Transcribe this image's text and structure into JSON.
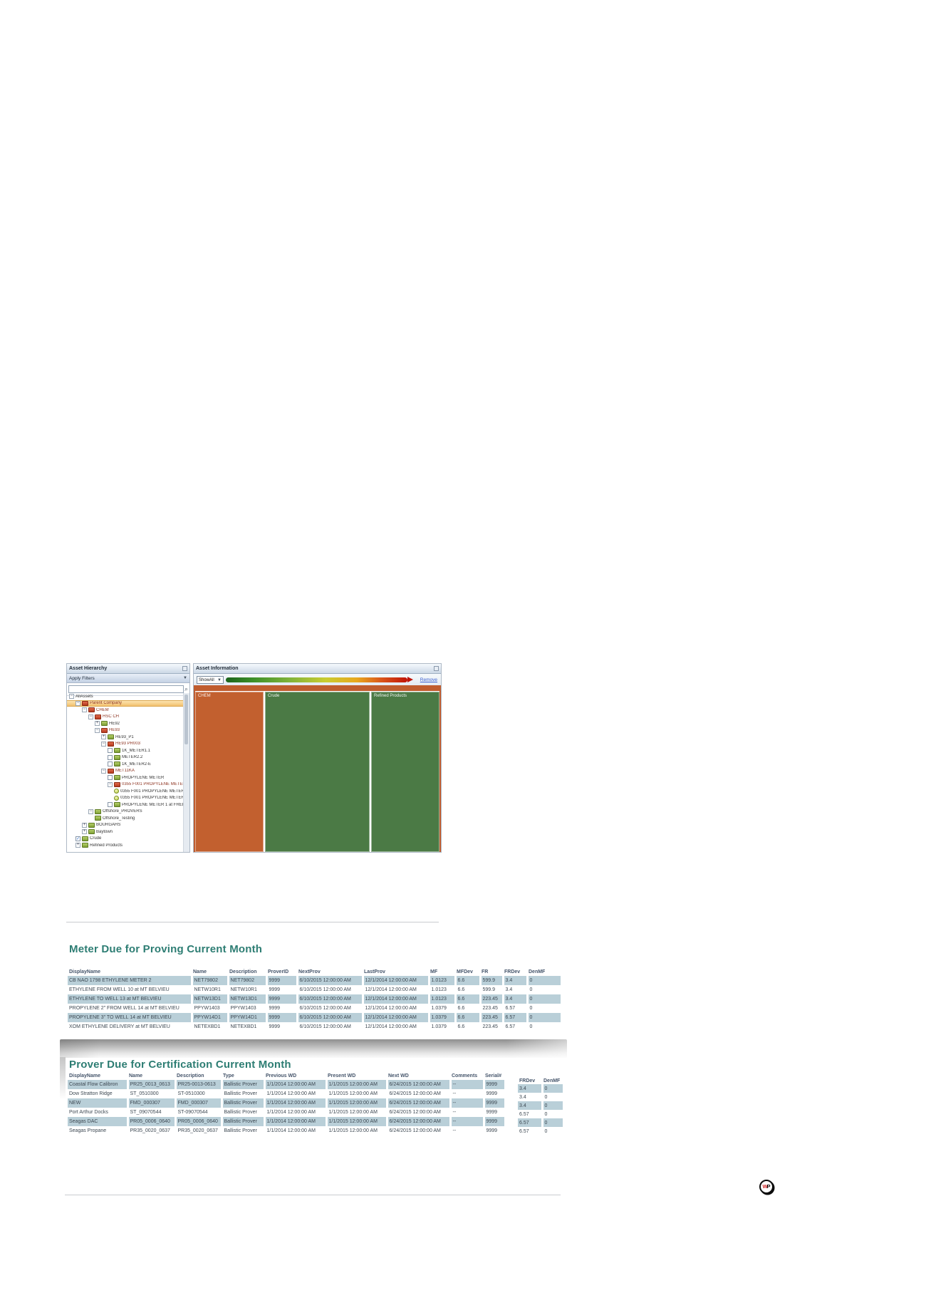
{
  "app": {
    "tree_panel": {
      "title": "Asset Hierarchy",
      "filter_label": "Apply Filters",
      "search_value": "",
      "items": [
        {
          "label": "AllAssets",
          "depth": 0,
          "icon": "none",
          "exp": "minus",
          "checkbox": "none",
          "hl": false
        },
        {
          "label": "Parent Company",
          "depth": 1,
          "icon": "red-folder",
          "exp": "minus",
          "checkbox": "none",
          "hl": true
        },
        {
          "label": "CHEM",
          "depth": 2,
          "icon": "red-folder",
          "exp": "minus",
          "checkbox": "none",
          "hl": false
        },
        {
          "label": "HSC CH",
          "depth": 3,
          "icon": "red-folder",
          "exp": "minus",
          "checkbox": "none",
          "hl": false
        },
        {
          "label": "HE92",
          "depth": 4,
          "icon": "green-folder",
          "exp": "plus",
          "checkbox": "none",
          "hl": false
        },
        {
          "label": "HE93",
          "depth": 4,
          "icon": "red-folder",
          "exp": "minus",
          "checkbox": "none",
          "hl": false
        },
        {
          "label": "HE93_P1",
          "depth": 5,
          "icon": "green-folder",
          "exp": "plus",
          "checkbox": "none",
          "hl": false
        },
        {
          "label": "HE93 PR003",
          "depth": 5,
          "icon": "red-folder",
          "exp": "minus",
          "checkbox": "none",
          "hl": false
        },
        {
          "label": "1K_METER1.1",
          "depth": 6,
          "icon": "green-folder",
          "exp": "none",
          "checkbox": "empty",
          "hl": false
        },
        {
          "label": "METER2.2",
          "depth": 6,
          "icon": "green-folder",
          "exp": "none",
          "checkbox": "empty",
          "hl": false
        },
        {
          "label": "1K_METER2-E",
          "depth": 6,
          "icon": "green-folder",
          "exp": "none",
          "checkbox": "empty",
          "hl": false
        },
        {
          "label": "MET11KA",
          "depth": 5,
          "icon": "red-folder",
          "exp": "minus",
          "checkbox": "none",
          "hl": false
        },
        {
          "label": "PROPYLENE METER",
          "depth": 6,
          "icon": "green-folder",
          "exp": "none",
          "checkbox": "empty",
          "hl": false
        },
        {
          "label": "0355 F001 PROPYLENE METER",
          "depth": 6,
          "icon": "red-folder",
          "exp": "minus",
          "checkbox": "none",
          "hl": false
        },
        {
          "label": "0355 F001 PROPYLENE METER 1",
          "depth": 7,
          "icon": "bulb",
          "exp": "none",
          "checkbox": "none",
          "hl": false
        },
        {
          "label": "0355 F001 PROPYLENE METER 2",
          "depth": 7,
          "icon": "bulb",
          "exp": "none",
          "checkbox": "none",
          "hl": false
        },
        {
          "label": "PROPYLENE METER 1 at FREEPORT",
          "depth": 6,
          "icon": "green-folder",
          "exp": "none",
          "checkbox": "empty",
          "hl": false
        },
        {
          "label": "Offshore_PROVERS",
          "depth": 3,
          "icon": "green-folder",
          "exp": "minus",
          "checkbox": "none",
          "hl": false
        },
        {
          "label": "Offshore_Testing",
          "depth": 4,
          "icon": "green-folder",
          "exp": "none",
          "checkbox": "none",
          "hl": false
        },
        {
          "label": "BOURGAHS",
          "depth": 2,
          "icon": "green-folder",
          "exp": "plus",
          "checkbox": "none",
          "hl": false
        },
        {
          "label": "Baytown",
          "depth": 2,
          "icon": "green-folder",
          "exp": "plus",
          "checkbox": "none",
          "hl": false
        },
        {
          "label": "Crude",
          "depth": 1,
          "icon": "green-folder",
          "exp": "none",
          "checkbox": "checked",
          "hl": false
        },
        {
          "label": "Refined Products",
          "depth": 1,
          "icon": "green-folder",
          "exp": "plus",
          "checkbox": "none",
          "hl": false
        }
      ]
    },
    "info_panel": {
      "title": "Asset Information",
      "dropdown_value": "ShowAll",
      "dropdown_caret": "▼",
      "remove_label": "Remove",
      "tiles": [
        {
          "label": "CHEM",
          "color": "#c2602f"
        },
        {
          "label": "Crude",
          "color": "#4b7a45"
        },
        {
          "label": "Refined Products",
          "color": "#4b7a45"
        }
      ]
    },
    "filter_caret": "▼",
    "search_icon": "⌕"
  },
  "meter_table": {
    "title": "Meter Due for Proving Current Month",
    "columns": [
      "DisplayName",
      "Name",
      "Description",
      "ProverID",
      "NextProv",
      "LastProv",
      "MF",
      "MFDev",
      "FR",
      "FRDev",
      "DenMF"
    ],
    "rows": [
      {
        "hl": true,
        "cells": [
          "CB NAO 1798 ETHYLENE METER 2",
          "NET79802",
          "NET79802",
          "9999",
          "6/10/2015 12:00:00 AM",
          "12/1/2014 12:00:00 AM",
          "1.0123",
          "6.6",
          "599.9",
          "3.4",
          "0"
        ]
      },
      {
        "hl": false,
        "cells": [
          "ETHYLENE FROM WELL 10 at MT BELVIEU",
          "NETW10R1",
          "NETW10R1",
          "9999",
          "6/10/2015 12:00:00 AM",
          "12/1/2014 12:00:00 AM",
          "1.0123",
          "6.6",
          "599.9",
          "3.4",
          "0"
        ]
      },
      {
        "hl": true,
        "cells": [
          "ETHYLENE TO WELL 13 at MT BELVIEU",
          "NETW13D1",
          "NETW13D1",
          "9999",
          "6/10/2015 12:00:00 AM",
          "12/1/2014 12:00:00 AM",
          "1.0123",
          "6.6",
          "223.45",
          "3.4",
          "0"
        ]
      },
      {
        "hl": false,
        "cells": [
          "PROPYLENE 2\" FROM WELL 14 at MT BELVIEU",
          "PPYW1403",
          "PPYW1403",
          "9999",
          "6/10/2015 12:00:00 AM",
          "12/1/2014 12:00:00 AM",
          "1.0379",
          "6.6",
          "223.45",
          "6.57",
          "0"
        ]
      },
      {
        "hl": true,
        "cells": [
          "PROPYLENE 3\" TO WELL 14 at MT BELVIEU",
          "PPYW14D1",
          "PPYW14D1",
          "9999",
          "6/10/2015 12:00:00 AM",
          "12/1/2014 12:00:00 AM",
          "1.0379",
          "6.6",
          "223.45",
          "6.57",
          "0"
        ]
      },
      {
        "hl": false,
        "cells": [
          "XOM ETHYLENE DELIVERY at MT BELVIEU",
          "NETEXBD1",
          "NETEXBD1",
          "9999",
          "6/10/2015 12:00:00 AM",
          "12/1/2014 12:00:00 AM",
          "1.0379",
          "6.6",
          "223.45",
          "6.57",
          "0"
        ]
      }
    ]
  },
  "prover_table": {
    "title": "Prover Due for Certification Current Month",
    "columns": [
      "DisplayName",
      "Name",
      "Description",
      "Type",
      "Previous WD",
      "Present WD",
      "Next WD",
      "Comments",
      "Serial#"
    ],
    "rows": [
      {
        "hl": true,
        "cells": [
          "Coastal Flow Calibron",
          "PR25_0013_0613",
          "PR25-0013-0613",
          "Ballistic Prover",
          "1/1/2014 12:00:00 AM",
          "1/1/2015 12:00:00 AM",
          "6/24/2015 12:00:00 AM",
          "--",
          "9999"
        ]
      },
      {
        "hl": false,
        "cells": [
          "Dow Stratton Ridge",
          "ST_0510300",
          "ST-0510300",
          "Ballistic Prover",
          "1/1/2014 12:00:00 AM",
          "1/1/2015 12:00:00 AM",
          "6/24/2015 12:00:00 AM",
          "--",
          "9999"
        ]
      },
      {
        "hl": true,
        "cells": [
          "NEW",
          "FMD_000307",
          "FMD_000307",
          "Ballistic Prover",
          "1/1/2014 12:00:00 AM",
          "1/1/2015 12:00:00 AM",
          "6/24/2015 12:00:00 AM",
          "--",
          "9999"
        ]
      },
      {
        "hl": false,
        "cells": [
          "Port Arthur Docks",
          "ST_09070544",
          "ST-09070544",
          "Ballistic Prover",
          "1/1/2014 12:00:00 AM",
          "1/1/2015 12:00:00 AM",
          "6/24/2015 12:00:00 AM",
          "--",
          "9999"
        ]
      },
      {
        "hl": true,
        "cells": [
          "Seagas DAC",
          "PR05_0006_0640",
          "PR05_0006_0640",
          "Ballistic Prover",
          "1/1/2014 12:00:00 AM",
          "1/1/2015 12:00:00 AM",
          "6/24/2015 12:00:00 AM",
          "--",
          "9999"
        ]
      },
      {
        "hl": false,
        "cells": [
          "Seagas Propane",
          "PR35_0020_0637",
          "PR35_0020_0637",
          "Ballistic Prover",
          "1/1/2014 12:00:00 AM",
          "1/1/2015 12:00:00 AM",
          "6/24/2015 12:00:00 AM",
          "--",
          "9999"
        ]
      }
    ]
  },
  "fragment_table": {
    "columns": [
      "FRDev",
      "DenMF"
    ],
    "rows": [
      {
        "hl": true,
        "cells": [
          "3.4",
          "0"
        ]
      },
      {
        "hl": false,
        "cells": [
          "3.4",
          "0"
        ]
      },
      {
        "hl": true,
        "cells": [
          "3.4",
          "0"
        ]
      },
      {
        "hl": false,
        "cells": [
          "6.57",
          "0"
        ]
      },
      {
        "hl": true,
        "cells": [
          "6.57",
          "0"
        ]
      },
      {
        "hl": false,
        "cells": [
          "6.57",
          "0"
        ]
      }
    ]
  },
  "logo": {
    "w": "W",
    "p": "P"
  },
  "colors": {
    "heading_teal": "#2d7d73",
    "row_highlight": "#b9cfd8",
    "treemap_orange": "#c2602f",
    "treemap_green": "#4b7a45",
    "tree_selected_tan": "#f2c06e",
    "link_blue": "#3a5fd0",
    "logo_red": "#d02020"
  }
}
